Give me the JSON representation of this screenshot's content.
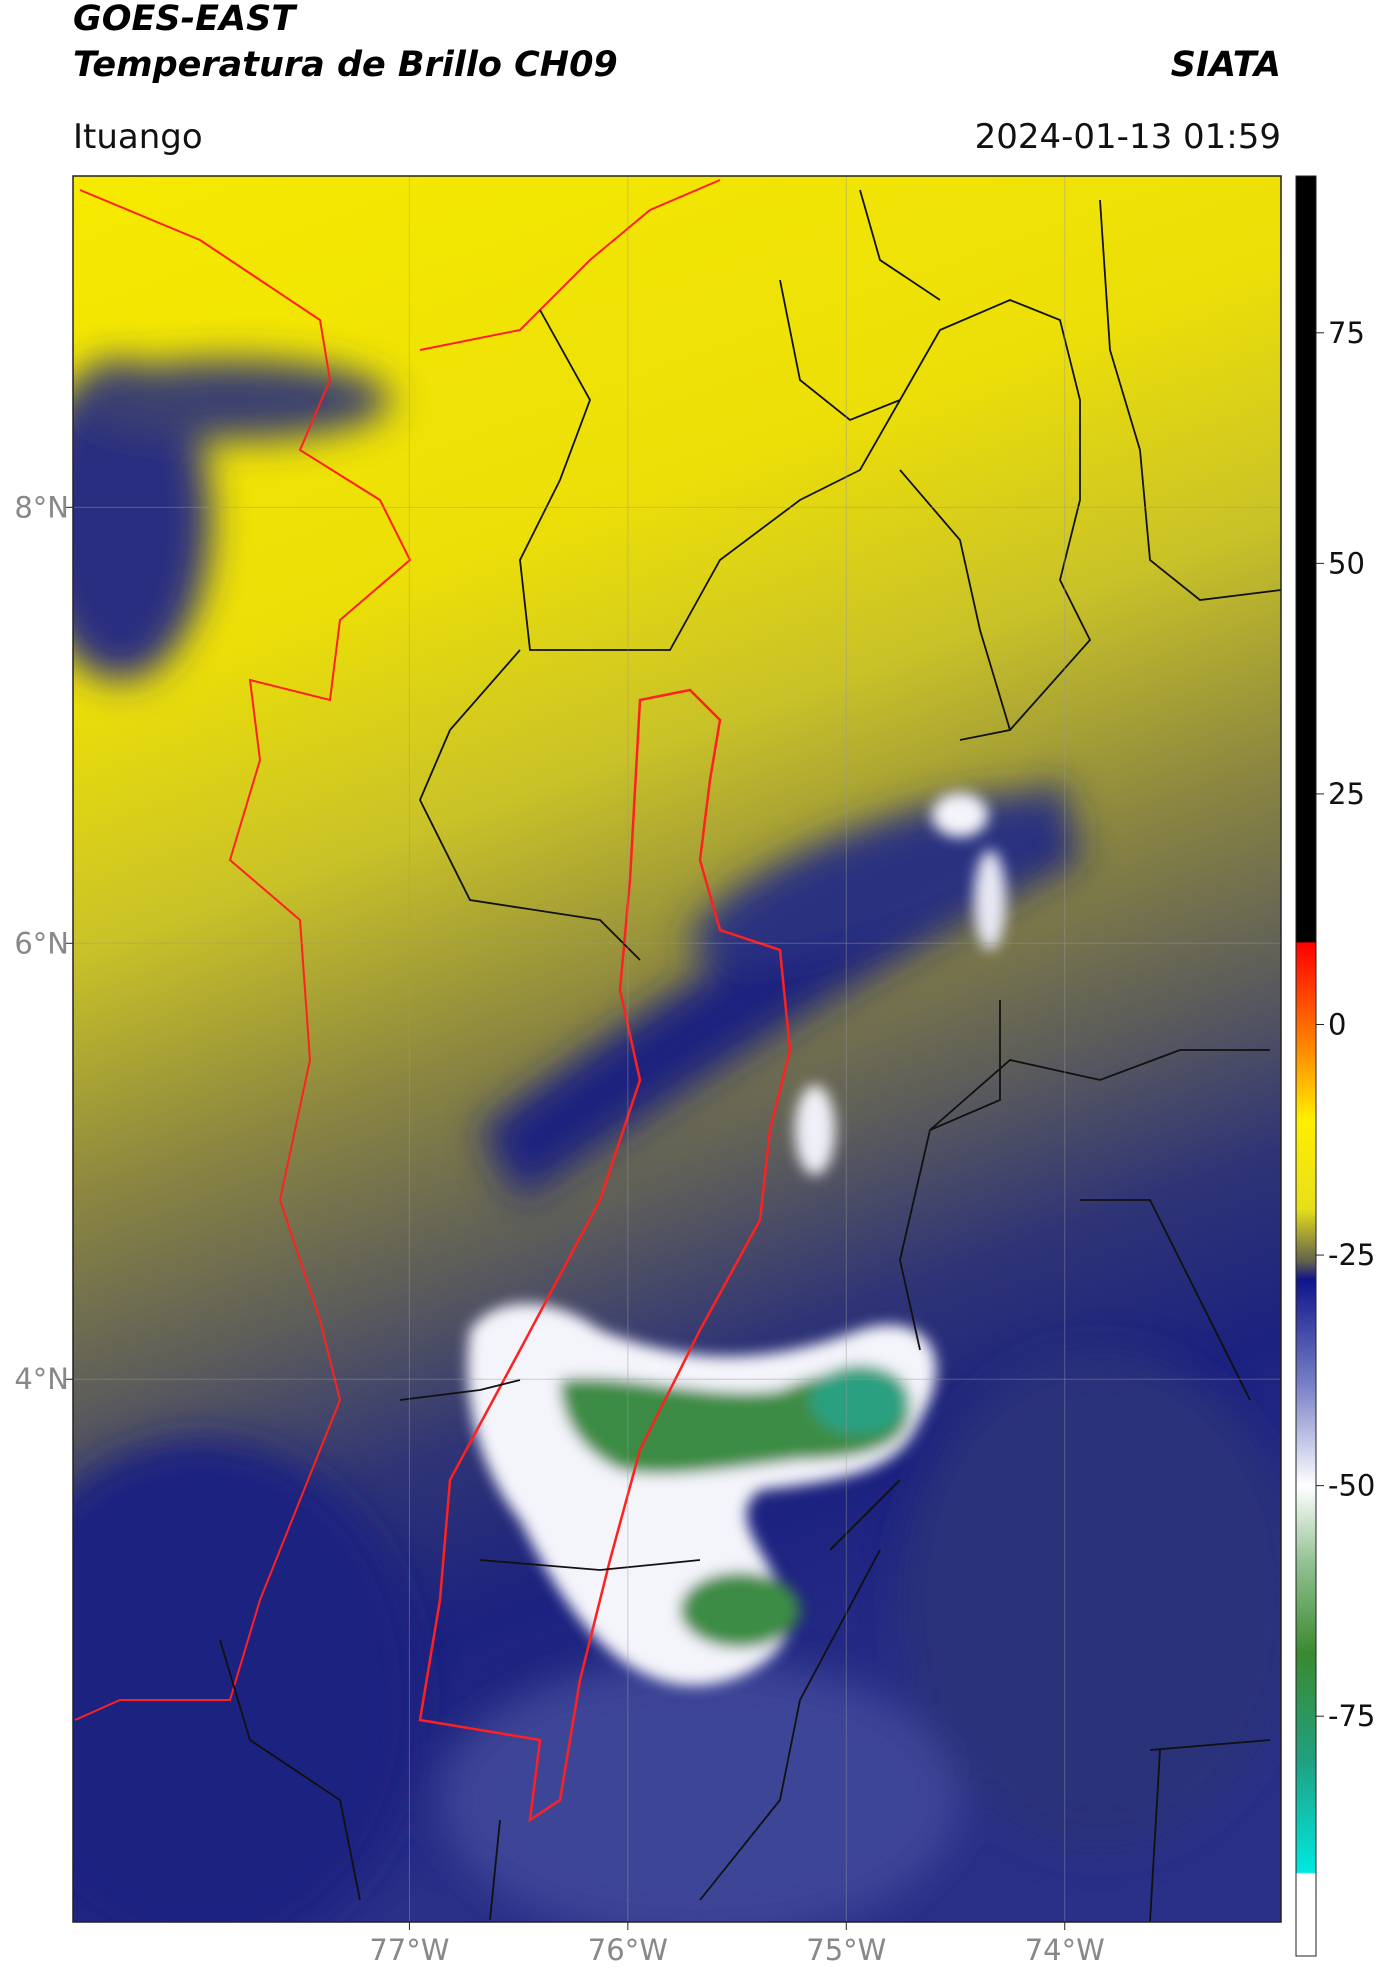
{
  "header": {
    "source": "GOES-EAST",
    "product": "Temperatura de Brillo CH09",
    "institution": "SIATA",
    "location": "Ituango",
    "datetime": "2024-01-13 01:59"
  },
  "map": {
    "xlim": [
      -78.54,
      -73.01
    ],
    "ylim": [
      1.51,
      9.52
    ],
    "xticks": [
      {
        "value": -77,
        "label": "77°W"
      },
      {
        "value": -76,
        "label": "76°W"
      },
      {
        "value": -75,
        "label": "75°W"
      },
      {
        "value": -74,
        "label": "74°W"
      }
    ],
    "yticks": [
      {
        "value": 8,
        "label": "8°N"
      },
      {
        "value": 6,
        "label": "6°N"
      },
      {
        "value": 4,
        "label": "4°N"
      }
    ],
    "grid": true
  },
  "colorbar": {
    "ylim": [
      -101,
      92
    ],
    "yticks": [
      75,
      50,
      25,
      0,
      -25,
      -50,
      -75
    ]
  }
}
